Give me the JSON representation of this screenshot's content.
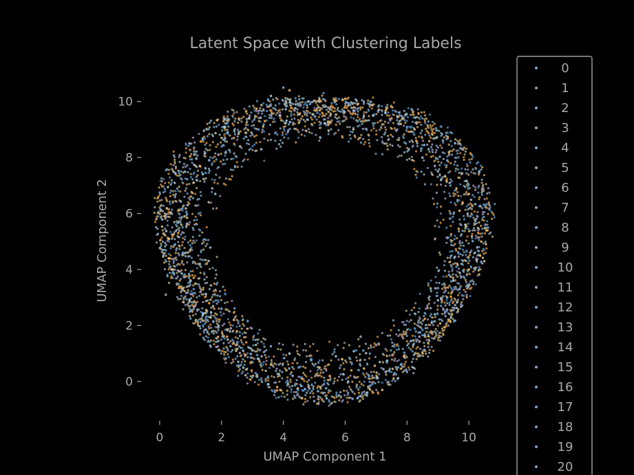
{
  "chart_data": {
    "type": "scatter",
    "title": "Latent Space with Clustering Labels",
    "xlabel": "UMAP Component 1",
    "ylabel": "UMAP Component 2",
    "xlim": [
      -0.6,
      11.2
    ],
    "ylim": [
      -1.4,
      11.0
    ],
    "xticks": [
      0,
      2,
      4,
      6,
      8,
      10
    ],
    "yticks": [
      0,
      2,
      4,
      6,
      8,
      10
    ],
    "grid": false,
    "legend_position": "right",
    "legend_labels": [
      "0",
      "1",
      "2",
      "3",
      "4",
      "5",
      "6",
      "7",
      "8",
      "9",
      "10",
      "11",
      "12",
      "13",
      "14",
      "15",
      "16",
      "17",
      "18",
      "19",
      "20"
    ],
    "point_colors": [
      "#5b9bd5",
      "#f4a742",
      "#a6cee3",
      "#f7c06b",
      "#9ecae1",
      "#d9c58a",
      "#b9a9d6",
      "#7fb5e6"
    ],
    "shape": "ring",
    "ring_center": [
      5.3,
      5.0
    ],
    "ring_inner_radius": 3.5,
    "ring_outer_radius": 5.7,
    "series": [
      {
        "name": "0",
        "x": [
          5.1,
          8.2,
          1.5,
          9.6,
          3.0,
          6.8
        ],
        "y": [
          9.6,
          8.9,
          2.2,
          4.1,
          0.7,
          1.0
        ]
      },
      {
        "name": "1",
        "x": [
          2.4,
          7.5,
          0.6,
          10.1,
          4.6,
          6.2
        ],
        "y": [
          8.7,
          9.4,
          5.3,
          6.3,
          0.1,
          0.4
        ]
      },
      {
        "name": "2",
        "x": [
          3.6,
          9.0,
          1.0,
          8.8,
          2.2,
          5.8
        ],
        "y": [
          10.2,
          7.5,
          3.6,
          2.1,
          1.5,
          -0.5
        ]
      },
      {
        "name": "3",
        "x": [
          1.3,
          6.0,
          0.3,
          10.4,
          3.8,
          7.9
        ],
        "y": [
          7.7,
          10.1,
          4.4,
          5.0,
          -0.2,
          0.9
        ]
      },
      {
        "name": "4",
        "x": [
          4.4,
          8.7,
          1.8,
          9.3,
          2.7,
          5.4
        ],
        "y": [
          9.9,
          8.3,
          6.7,
          3.0,
          1.1,
          -0.6
        ]
      },
      {
        "name": "5",
        "x": [
          2.9,
          9.6,
          0.8,
          9.9,
          4.1,
          7.2
        ],
        "y": [
          9.4,
          6.9,
          5.9,
          5.6,
          0.4,
          -0.3
        ]
      },
      {
        "name": "6",
        "x": [
          1.9,
          7.1,
          0.2,
          8.4,
          3.3,
          6.5
        ],
        "y": [
          8.1,
          9.7,
          3.1,
          1.6,
          0.9,
          1.6
        ]
      },
      {
        "name": "7",
        "x": [
          4.0,
          9.3,
          1.2,
          10.2,
          2.0,
          5.0
        ],
        "y": [
          10.5,
          7.9,
          7.2,
          4.6,
          2.6,
          -0.7
        ]
      },
      {
        "name": "8",
        "x": [
          3.2,
          8.0,
          0.5,
          9.1,
          4.9,
          7.6
        ],
        "y": [
          9.0,
          9.1,
          4.9,
          2.7,
          0.8,
          0.3
        ]
      },
      {
        "name": "9",
        "x": [
          5.6,
          9.8,
          1.6,
          10.3,
          2.5,
          6.9
        ],
        "y": [
          9.8,
          6.4,
          2.8,
          5.3,
          1.8,
          -0.4
        ]
      },
      {
        "name": "10",
        "x": [
          2.1,
          8.5,
          0.9,
          9.5,
          4.3,
          5.7
        ],
        "y": [
          9.1,
          8.0,
          6.3,
          3.6,
          0.2,
          0.9
        ]
      },
      {
        "name": "11",
        "x": [
          1.1,
          6.4,
          0.4,
          10.0,
          3.6,
          7.4
        ],
        "y": [
          7.1,
          9.9,
          4.0,
          6.7,
          0.6,
          -0.1
        ]
      },
      {
        "name": "12",
        "x": [
          4.8,
          9.1,
          1.4,
          8.9,
          2.9,
          6.1
        ],
        "y": [
          10.0,
          7.2,
          2.4,
          2.4,
          1.2,
          0.0
        ]
      },
      {
        "name": "13",
        "x": [
          2.6,
          7.8,
          0.7,
          10.5,
          3.9,
          5.2
        ],
        "y": [
          8.4,
          9.2,
          5.6,
          4.3,
          -0.3,
          -0.2
        ]
      },
      {
        "name": "14",
        "x": [
          3.9,
          8.9,
          1.7,
          9.7,
          2.3,
          7.0
        ],
        "y": [
          9.5,
          7.7,
          6.9,
          3.3,
          1.9,
          1.3
        ]
      },
      {
        "name": "15",
        "x": [
          1.6,
          6.6,
          0.1,
          9.4,
          4.5,
          6.4
        ],
        "y": [
          7.9,
          10.0,
          4.7,
          6.0,
          0.5,
          -0.6
        ]
      },
      {
        "name": "16",
        "x": [
          5.3,
          9.4,
          1.1,
          8.6,
          3.1,
          7.8
        ],
        "y": [
          10.3,
          7.0,
          3.3,
          1.9,
          0.3,
          0.6
        ]
      },
      {
        "name": "17",
        "x": [
          3.4,
          8.3,
          0.6,
          10.6,
          2.8,
          5.5
        ],
        "y": [
          9.3,
          8.6,
          6.1,
          5.4,
          1.4,
          0.2
        ]
      },
      {
        "name": "18",
        "x": [
          2.2,
          7.3,
          1.9,
          9.0,
          4.2,
          6.7
        ],
        "y": [
          8.9,
          9.6,
          2.0,
          2.9,
          1.0,
          -0.5
        ]
      },
      {
        "name": "19",
        "x": [
          4.2,
          9.7,
          0.3,
          10.0,
          2.4,
          5.9
        ],
        "y": [
          10.4,
          6.1,
          5.1,
          4.0,
          2.2,
          0.8
        ]
      },
      {
        "name": "20",
        "x": [
          1.4,
          6.9,
          1.3,
          8.2,
          3.5,
          7.7
        ],
        "y": [
          7.4,
          9.5,
          4.2,
          1.3,
          -0.1,
          0.1
        ]
      }
    ]
  }
}
